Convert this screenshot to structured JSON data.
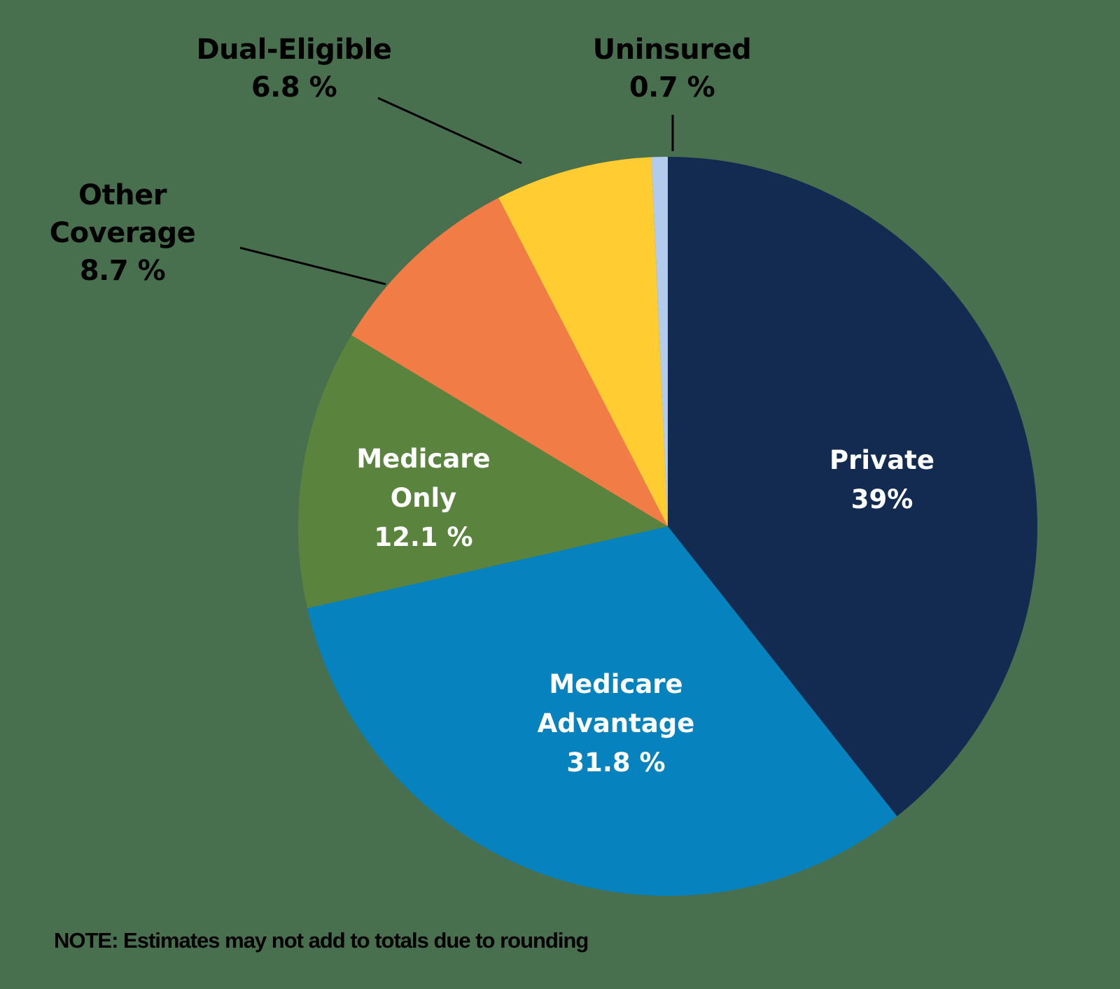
{
  "chart_data": {
    "type": "pie",
    "title": "",
    "start_angle_deg": 0,
    "direction": "counterclockwise-from-top-ending",
    "slices": [
      {
        "label": "Private",
        "value": 39.0,
        "display": "39%",
        "color": "#132b51",
        "label_position": "inside"
      },
      {
        "label": "Medicare Advantage",
        "value": 31.8,
        "display": "31.8 %",
        "color": "#0682be",
        "label_position": "inside"
      },
      {
        "label": "Medicare Only",
        "value": 12.1,
        "display": "12.1 %",
        "color": "#5a843d",
        "label_position": "inside"
      },
      {
        "label": "Other Coverage",
        "value": 8.7,
        "display": "8.7 %",
        "color": "#f27c45",
        "label_position": "outside"
      },
      {
        "label": "Dual-Eligible",
        "value": 6.8,
        "display": "6.8 %",
        "color": "#ffcd31",
        "label_position": "outside"
      },
      {
        "label": "Uninsured",
        "value": 0.7,
        "display": "0.7 %",
        "color": "#b3cbec",
        "label_position": "outside"
      }
    ],
    "note": "NOTE: Estimates may not add to totals due to rounding"
  },
  "labels": {
    "private": {
      "line1": "Private",
      "line2": "39%"
    },
    "medicare_advantage": {
      "line1": "Medicare",
      "line2": "Advantage",
      "line3": "31.8 %"
    },
    "medicare_only": {
      "line1": "Medicare",
      "line2": "Only",
      "line3": "12.1 %"
    },
    "other_coverage": {
      "line1": "Other",
      "line2": "Coverage",
      "line3": "8.7 %"
    },
    "dual_eligible": {
      "line1": "Dual-Eligible",
      "line2": "6.8 %"
    },
    "uninsured": {
      "line1": "Uninsured",
      "line2": "0.7 %"
    }
  },
  "footer": {
    "note": "NOTE: Estimates may not add to totals due to rounding"
  },
  "colors": {
    "background": "#48704f",
    "private": "#132b51",
    "medicare_advantage": "#0682be",
    "medicare_only": "#5a843d",
    "other_coverage": "#f27c45",
    "dual_eligible": "#ffcd31",
    "uninsured": "#b3cbec"
  }
}
